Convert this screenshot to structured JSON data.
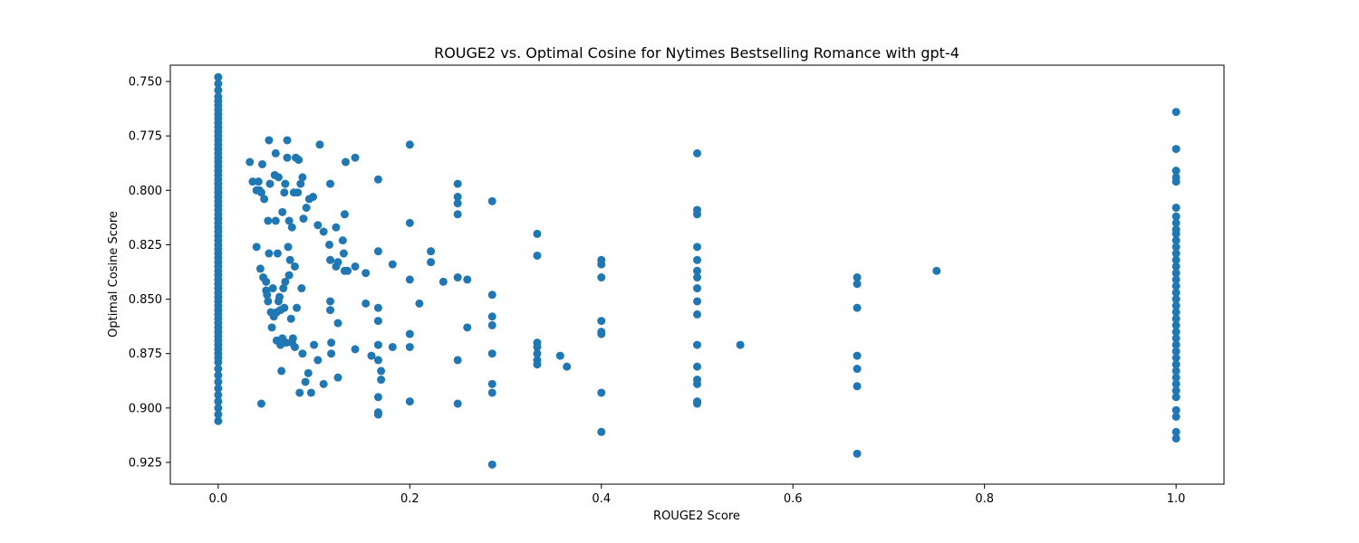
{
  "chart_data": {
    "type": "scatter",
    "title": "ROUGE2 vs. Optimal Cosine for Nytimes Bestselling Romance with gpt-4",
    "xlabel": "ROUGE2 Score",
    "ylabel": "Optimal Cosine Score",
    "xlim": [
      -0.05,
      1.05
    ],
    "ylim": [
      0.935,
      0.7425
    ],
    "y_inverted": true,
    "grid": false,
    "marker_color": "#1f77b4",
    "xticks": [
      {
        "value": 0.0,
        "label": "0.0"
      },
      {
        "value": 0.2,
        "label": "0.2"
      },
      {
        "value": 0.4,
        "label": "0.4"
      },
      {
        "value": 0.6,
        "label": "0.6"
      },
      {
        "value": 0.8,
        "label": "0.8"
      },
      {
        "value": 1.0,
        "label": "1.0"
      }
    ],
    "yticks": [
      {
        "value": 0.75,
        "label": "0.750"
      },
      {
        "value": 0.775,
        "label": "0.775"
      },
      {
        "value": 0.8,
        "label": "0.800"
      },
      {
        "value": 0.825,
        "label": "0.825"
      },
      {
        "value": 0.85,
        "label": "0.850"
      },
      {
        "value": 0.875,
        "label": "0.875"
      },
      {
        "value": 0.9,
        "label": "0.900"
      },
      {
        "value": 0.925,
        "label": "0.925"
      }
    ],
    "points": [
      [
        0,
        0.748
      ],
      [
        0,
        0.751
      ],
      [
        0,
        0.754
      ],
      [
        0,
        0.757
      ],
      [
        0,
        0.759
      ],
      [
        0,
        0.761
      ],
      [
        0,
        0.763
      ],
      [
        0,
        0.765
      ],
      [
        0,
        0.767
      ],
      [
        0,
        0.769
      ],
      [
        0,
        0.771
      ],
      [
        0,
        0.773
      ],
      [
        0,
        0.775
      ],
      [
        0,
        0.777
      ],
      [
        0,
        0.779
      ],
      [
        0,
        0.781
      ],
      [
        0,
        0.783
      ],
      [
        0,
        0.785
      ],
      [
        0,
        0.787
      ],
      [
        0,
        0.789
      ],
      [
        0,
        0.791
      ],
      [
        0,
        0.793
      ],
      [
        0,
        0.795
      ],
      [
        0,
        0.797
      ],
      [
        0,
        0.799
      ],
      [
        0,
        0.801
      ],
      [
        0,
        0.803
      ],
      [
        0,
        0.805
      ],
      [
        0,
        0.807
      ],
      [
        0,
        0.809
      ],
      [
        0,
        0.811
      ],
      [
        0,
        0.813
      ],
      [
        0,
        0.815
      ],
      [
        0,
        0.817
      ],
      [
        0,
        0.819
      ],
      [
        0,
        0.821
      ],
      [
        0,
        0.823
      ],
      [
        0,
        0.825
      ],
      [
        0,
        0.827
      ],
      [
        0,
        0.829
      ],
      [
        0,
        0.831
      ],
      [
        0,
        0.833
      ],
      [
        0,
        0.835
      ],
      [
        0,
        0.837
      ],
      [
        0,
        0.839
      ],
      [
        0,
        0.841
      ],
      [
        0,
        0.843
      ],
      [
        0,
        0.845
      ],
      [
        0,
        0.847
      ],
      [
        0,
        0.849
      ],
      [
        0,
        0.851
      ],
      [
        0,
        0.853
      ],
      [
        0,
        0.855
      ],
      [
        0,
        0.857
      ],
      [
        0,
        0.859
      ],
      [
        0,
        0.861
      ],
      [
        0,
        0.863
      ],
      [
        0,
        0.865
      ],
      [
        0,
        0.867
      ],
      [
        0,
        0.869
      ],
      [
        0,
        0.871
      ],
      [
        0,
        0.873
      ],
      [
        0,
        0.875
      ],
      [
        0,
        0.877
      ],
      [
        0,
        0.879
      ],
      [
        0,
        0.882
      ],
      [
        0,
        0.885
      ],
      [
        0,
        0.888
      ],
      [
        0,
        0.891
      ],
      [
        0,
        0.894
      ],
      [
        0,
        0.897
      ],
      [
        0,
        0.9
      ],
      [
        0,
        0.903
      ],
      [
        0,
        0.906
      ],
      [
        0.033,
        0.787
      ],
      [
        0.036,
        0.796
      ],
      [
        0.04,
        0.8
      ],
      [
        0.04,
        0.826
      ],
      [
        0.042,
        0.796
      ],
      [
        0.043,
        0.8
      ],
      [
        0.044,
        0.836
      ],
      [
        0.045,
        0.801
      ],
      [
        0.045,
        0.898
      ],
      [
        0.046,
        0.788
      ],
      [
        0.047,
        0.84
      ],
      [
        0.048,
        0.804
      ],
      [
        0.05,
        0.842
      ],
      [
        0.05,
        0.846
      ],
      [
        0.051,
        0.848
      ],
      [
        0.052,
        0.814
      ],
      [
        0.052,
        0.851
      ],
      [
        0.053,
        0.829
      ],
      [
        0.053,
        0.777
      ],
      [
        0.054,
        0.797
      ],
      [
        0.055,
        0.856
      ],
      [
        0.056,
        0.863
      ],
      [
        0.057,
        0.845
      ],
      [
        0.058,
        0.858
      ],
      [
        0.059,
        0.793
      ],
      [
        0.06,
        0.814
      ],
      [
        0.06,
        0.783
      ],
      [
        0.061,
        0.869
      ],
      [
        0.061,
        0.856
      ],
      [
        0.062,
        0.829
      ],
      [
        0.063,
        0.851
      ],
      [
        0.063,
        0.794
      ],
      [
        0.064,
        0.849
      ],
      [
        0.065,
        0.855
      ],
      [
        0.065,
        0.871
      ],
      [
        0.066,
        0.883
      ],
      [
        0.067,
        0.868
      ],
      [
        0.067,
        0.81
      ],
      [
        0.068,
        0.845
      ],
      [
        0.069,
        0.801
      ],
      [
        0.069,
        0.854
      ],
      [
        0.07,
        0.797
      ],
      [
        0.07,
        0.842
      ],
      [
        0.071,
        0.87
      ],
      [
        0.072,
        0.785
      ],
      [
        0.072,
        0.777
      ],
      [
        0.073,
        0.826
      ],
      [
        0.074,
        0.839
      ],
      [
        0.074,
        0.814
      ],
      [
        0.075,
        0.832
      ],
      [
        0.076,
        0.859
      ],
      [
        0.077,
        0.87
      ],
      [
        0.077,
        0.817
      ],
      [
        0.078,
        0.868
      ],
      [
        0.079,
        0.801
      ],
      [
        0.08,
        0.872
      ],
      [
        0.08,
        0.835
      ],
      [
        0.081,
        0.785
      ],
      [
        0.082,
        0.854
      ],
      [
        0.083,
        0.801
      ],
      [
        0.084,
        0.786
      ],
      [
        0.085,
        0.893
      ],
      [
        0.086,
        0.797
      ],
      [
        0.087,
        0.845
      ],
      [
        0.088,
        0.794
      ],
      [
        0.088,
        0.875
      ],
      [
        0.089,
        0.813
      ],
      [
        0.091,
        0.888
      ],
      [
        0.092,
        0.808
      ],
      [
        0.094,
        0.884
      ],
      [
        0.095,
        0.804
      ],
      [
        0.097,
        0.893
      ],
      [
        0.099,
        0.803
      ],
      [
        0.1,
        0.871
      ],
      [
        0.104,
        0.878
      ],
      [
        0.104,
        0.816
      ],
      [
        0.106,
        0.779
      ],
      [
        0.11,
        0.819
      ],
      [
        0.11,
        0.889
      ],
      [
        0.116,
        0.825
      ],
      [
        0.117,
        0.851
      ],
      [
        0.117,
        0.832
      ],
      [
        0.117,
        0.855
      ],
      [
        0.117,
        0.797
      ],
      [
        0.118,
        0.87
      ],
      [
        0.118,
        0.875
      ],
      [
        0.123,
        0.817
      ],
      [
        0.123,
        0.835
      ],
      [
        0.125,
        0.886
      ],
      [
        0.125,
        0.833
      ],
      [
        0.125,
        0.861
      ],
      [
        0.13,
        0.823
      ],
      [
        0.131,
        0.829
      ],
      [
        0.132,
        0.837
      ],
      [
        0.132,
        0.811
      ],
      [
        0.133,
        0.787
      ],
      [
        0.135,
        0.837
      ],
      [
        0.143,
        0.785
      ],
      [
        0.143,
        0.835
      ],
      [
        0.143,
        0.873
      ],
      [
        0.154,
        0.838
      ],
      [
        0.154,
        0.852
      ],
      [
        0.16,
        0.876
      ],
      [
        0.167,
        0.854
      ],
      [
        0.167,
        0.86
      ],
      [
        0.167,
        0.871
      ],
      [
        0.167,
        0.878
      ],
      [
        0.167,
        0.895
      ],
      [
        0.167,
        0.902
      ],
      [
        0.167,
        0.903
      ],
      [
        0.167,
        0.828
      ],
      [
        0.167,
        0.795
      ],
      [
        0.17,
        0.883
      ],
      [
        0.17,
        0.887
      ],
      [
        0.182,
        0.834
      ],
      [
        0.182,
        0.872
      ],
      [
        0.2,
        0.779
      ],
      [
        0.2,
        0.815
      ],
      [
        0.2,
        0.841
      ],
      [
        0.2,
        0.866
      ],
      [
        0.2,
        0.872
      ],
      [
        0.2,
        0.897
      ],
      [
        0.21,
        0.852
      ],
      [
        0.222,
        0.828
      ],
      [
        0.222,
        0.833
      ],
      [
        0.235,
        0.842
      ],
      [
        0.25,
        0.797
      ],
      [
        0.25,
        0.803
      ],
      [
        0.25,
        0.806
      ],
      [
        0.25,
        0.811
      ],
      [
        0.25,
        0.84
      ],
      [
        0.25,
        0.878
      ],
      [
        0.25,
        0.898
      ],
      [
        0.26,
        0.841
      ],
      [
        0.26,
        0.863
      ],
      [
        0.286,
        0.805
      ],
      [
        0.286,
        0.848
      ],
      [
        0.286,
        0.858
      ],
      [
        0.286,
        0.862
      ],
      [
        0.286,
        0.875
      ],
      [
        0.286,
        0.889
      ],
      [
        0.286,
        0.893
      ],
      [
        0.286,
        0.926
      ],
      [
        0.333,
        0.82
      ],
      [
        0.333,
        0.83
      ],
      [
        0.333,
        0.87
      ],
      [
        0.333,
        0.872
      ],
      [
        0.333,
        0.875
      ],
      [
        0.333,
        0.878
      ],
      [
        0.333,
        0.88
      ],
      [
        0.357,
        0.876
      ],
      [
        0.364,
        0.881
      ],
      [
        0.4,
        0.832
      ],
      [
        0.4,
        0.834
      ],
      [
        0.4,
        0.84
      ],
      [
        0.4,
        0.86
      ],
      [
        0.4,
        0.865
      ],
      [
        0.4,
        0.866
      ],
      [
        0.4,
        0.893
      ],
      [
        0.4,
        0.911
      ],
      [
        0.5,
        0.783
      ],
      [
        0.5,
        0.809
      ],
      [
        0.5,
        0.811
      ],
      [
        0.5,
        0.826
      ],
      [
        0.5,
        0.832
      ],
      [
        0.5,
        0.837
      ],
      [
        0.5,
        0.84
      ],
      [
        0.5,
        0.845
      ],
      [
        0.5,
        0.851
      ],
      [
        0.5,
        0.857
      ],
      [
        0.5,
        0.871
      ],
      [
        0.5,
        0.881
      ],
      [
        0.5,
        0.887
      ],
      [
        0.5,
        0.889
      ],
      [
        0.5,
        0.897
      ],
      [
        0.5,
        0.898
      ],
      [
        0.545,
        0.871
      ],
      [
        0.667,
        0.84
      ],
      [
        0.667,
        0.843
      ],
      [
        0.667,
        0.854
      ],
      [
        0.667,
        0.876
      ],
      [
        0.667,
        0.882
      ],
      [
        0.667,
        0.89
      ],
      [
        0.667,
        0.921
      ],
      [
        0.75,
        0.837
      ],
      [
        1,
        0.764
      ],
      [
        1,
        0.781
      ],
      [
        1,
        0.791
      ],
      [
        1,
        0.794
      ],
      [
        1,
        0.796
      ],
      [
        1,
        0.808
      ],
      [
        1,
        0.812
      ],
      [
        1,
        0.815
      ],
      [
        1,
        0.818
      ],
      [
        1,
        0.82
      ],
      [
        1,
        0.823
      ],
      [
        1,
        0.826
      ],
      [
        1,
        0.829
      ],
      [
        1,
        0.832
      ],
      [
        1,
        0.835
      ],
      [
        1,
        0.838
      ],
      [
        1,
        0.841
      ],
      [
        1,
        0.844
      ],
      [
        1,
        0.847
      ],
      [
        1,
        0.85
      ],
      [
        1,
        0.853
      ],
      [
        1,
        0.856
      ],
      [
        1,
        0.859
      ],
      [
        1,
        0.862
      ],
      [
        1,
        0.865
      ],
      [
        1,
        0.868
      ],
      [
        1,
        0.871
      ],
      [
        1,
        0.874
      ],
      [
        1,
        0.877
      ],
      [
        1,
        0.88
      ],
      [
        1,
        0.883
      ],
      [
        1,
        0.886
      ],
      [
        1,
        0.889
      ],
      [
        1,
        0.892
      ],
      [
        1,
        0.895
      ],
      [
        1,
        0.901
      ],
      [
        1,
        0.904
      ],
      [
        1,
        0.911
      ],
      [
        1,
        0.914
      ]
    ]
  }
}
